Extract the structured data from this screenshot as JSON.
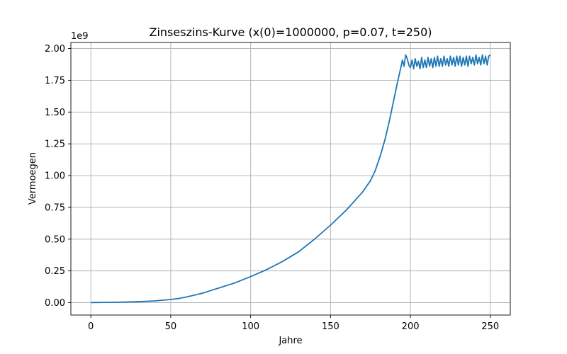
{
  "chart_data": {
    "type": "line",
    "title": "Zinseszins-Kurve (x(0)=1000000, p=0.07, t=250)",
    "xlabel": "Jahre",
    "ylabel": "Vermoegen",
    "y_offset_label": "1e9",
    "xlim": [
      -12.5,
      262.5
    ],
    "ylim": [
      -0.0975,
      2.0475
    ],
    "y_unit_scale": 1000000000,
    "grid": true,
    "color": "#1f77b4",
    "x_ticks": [
      0,
      50,
      100,
      150,
      200,
      250
    ],
    "x_tick_labels": [
      "0",
      "50",
      "100",
      "150",
      "200",
      "250"
    ],
    "y_ticks": [
      0,
      0.25,
      0.5,
      0.75,
      1.0,
      1.25,
      1.5,
      1.75,
      2.0
    ],
    "y_tick_labels": [
      "0.00",
      "0.25",
      "0.50",
      "0.75",
      "1.00",
      "1.25",
      "1.50",
      "1.75",
      "2.00"
    ],
    "series": [
      {
        "x": [
          0,
          10,
          20,
          30,
          40,
          50,
          55,
          60,
          65,
          70,
          75,
          76,
          80,
          90,
          100,
          110,
          120,
          130,
          140,
          150,
          160,
          170,
          175,
          178,
          181,
          184,
          187,
          190,
          192,
          194,
          195,
          196,
          197,
          198,
          199,
          200,
          201,
          202,
          203,
          204,
          205,
          206,
          207,
          208,
          209,
          210,
          211,
          212,
          213,
          214,
          215,
          216,
          217,
          218,
          219,
          220,
          221,
          222,
          223,
          224,
          225,
          226,
          227,
          228,
          229,
          230,
          231,
          232,
          233,
          234,
          235,
          236,
          237,
          238,
          239,
          240,
          241,
          242,
          243,
          244,
          245,
          246,
          247,
          248,
          249,
          250
        ],
        "y": [
          0.001,
          0.002,
          0.004,
          0.008,
          0.014,
          0.025,
          0.033,
          0.045,
          0.06,
          0.075,
          0.095,
          0.1,
          0.115,
          0.155,
          0.205,
          0.26,
          0.325,
          0.4,
          0.5,
          0.61,
          0.73,
          0.87,
          0.96,
          1.04,
          1.15,
          1.28,
          1.44,
          1.62,
          1.74,
          1.85,
          1.91,
          1.86,
          1.95,
          1.92,
          1.87,
          1.85,
          1.91,
          1.84,
          1.92,
          1.86,
          1.9,
          1.84,
          1.93,
          1.85,
          1.91,
          1.85,
          1.93,
          1.86,
          1.92,
          1.85,
          1.93,
          1.86,
          1.94,
          1.86,
          1.92,
          1.86,
          1.94,
          1.87,
          1.92,
          1.86,
          1.94,
          1.87,
          1.93,
          1.86,
          1.94,
          1.87,
          1.94,
          1.86,
          1.93,
          1.87,
          1.94,
          1.86,
          1.94,
          1.88,
          1.93,
          1.87,
          1.95,
          1.88,
          1.93,
          1.87,
          1.95,
          1.88,
          1.94,
          1.87,
          1.94,
          1.95
        ]
      }
    ]
  }
}
